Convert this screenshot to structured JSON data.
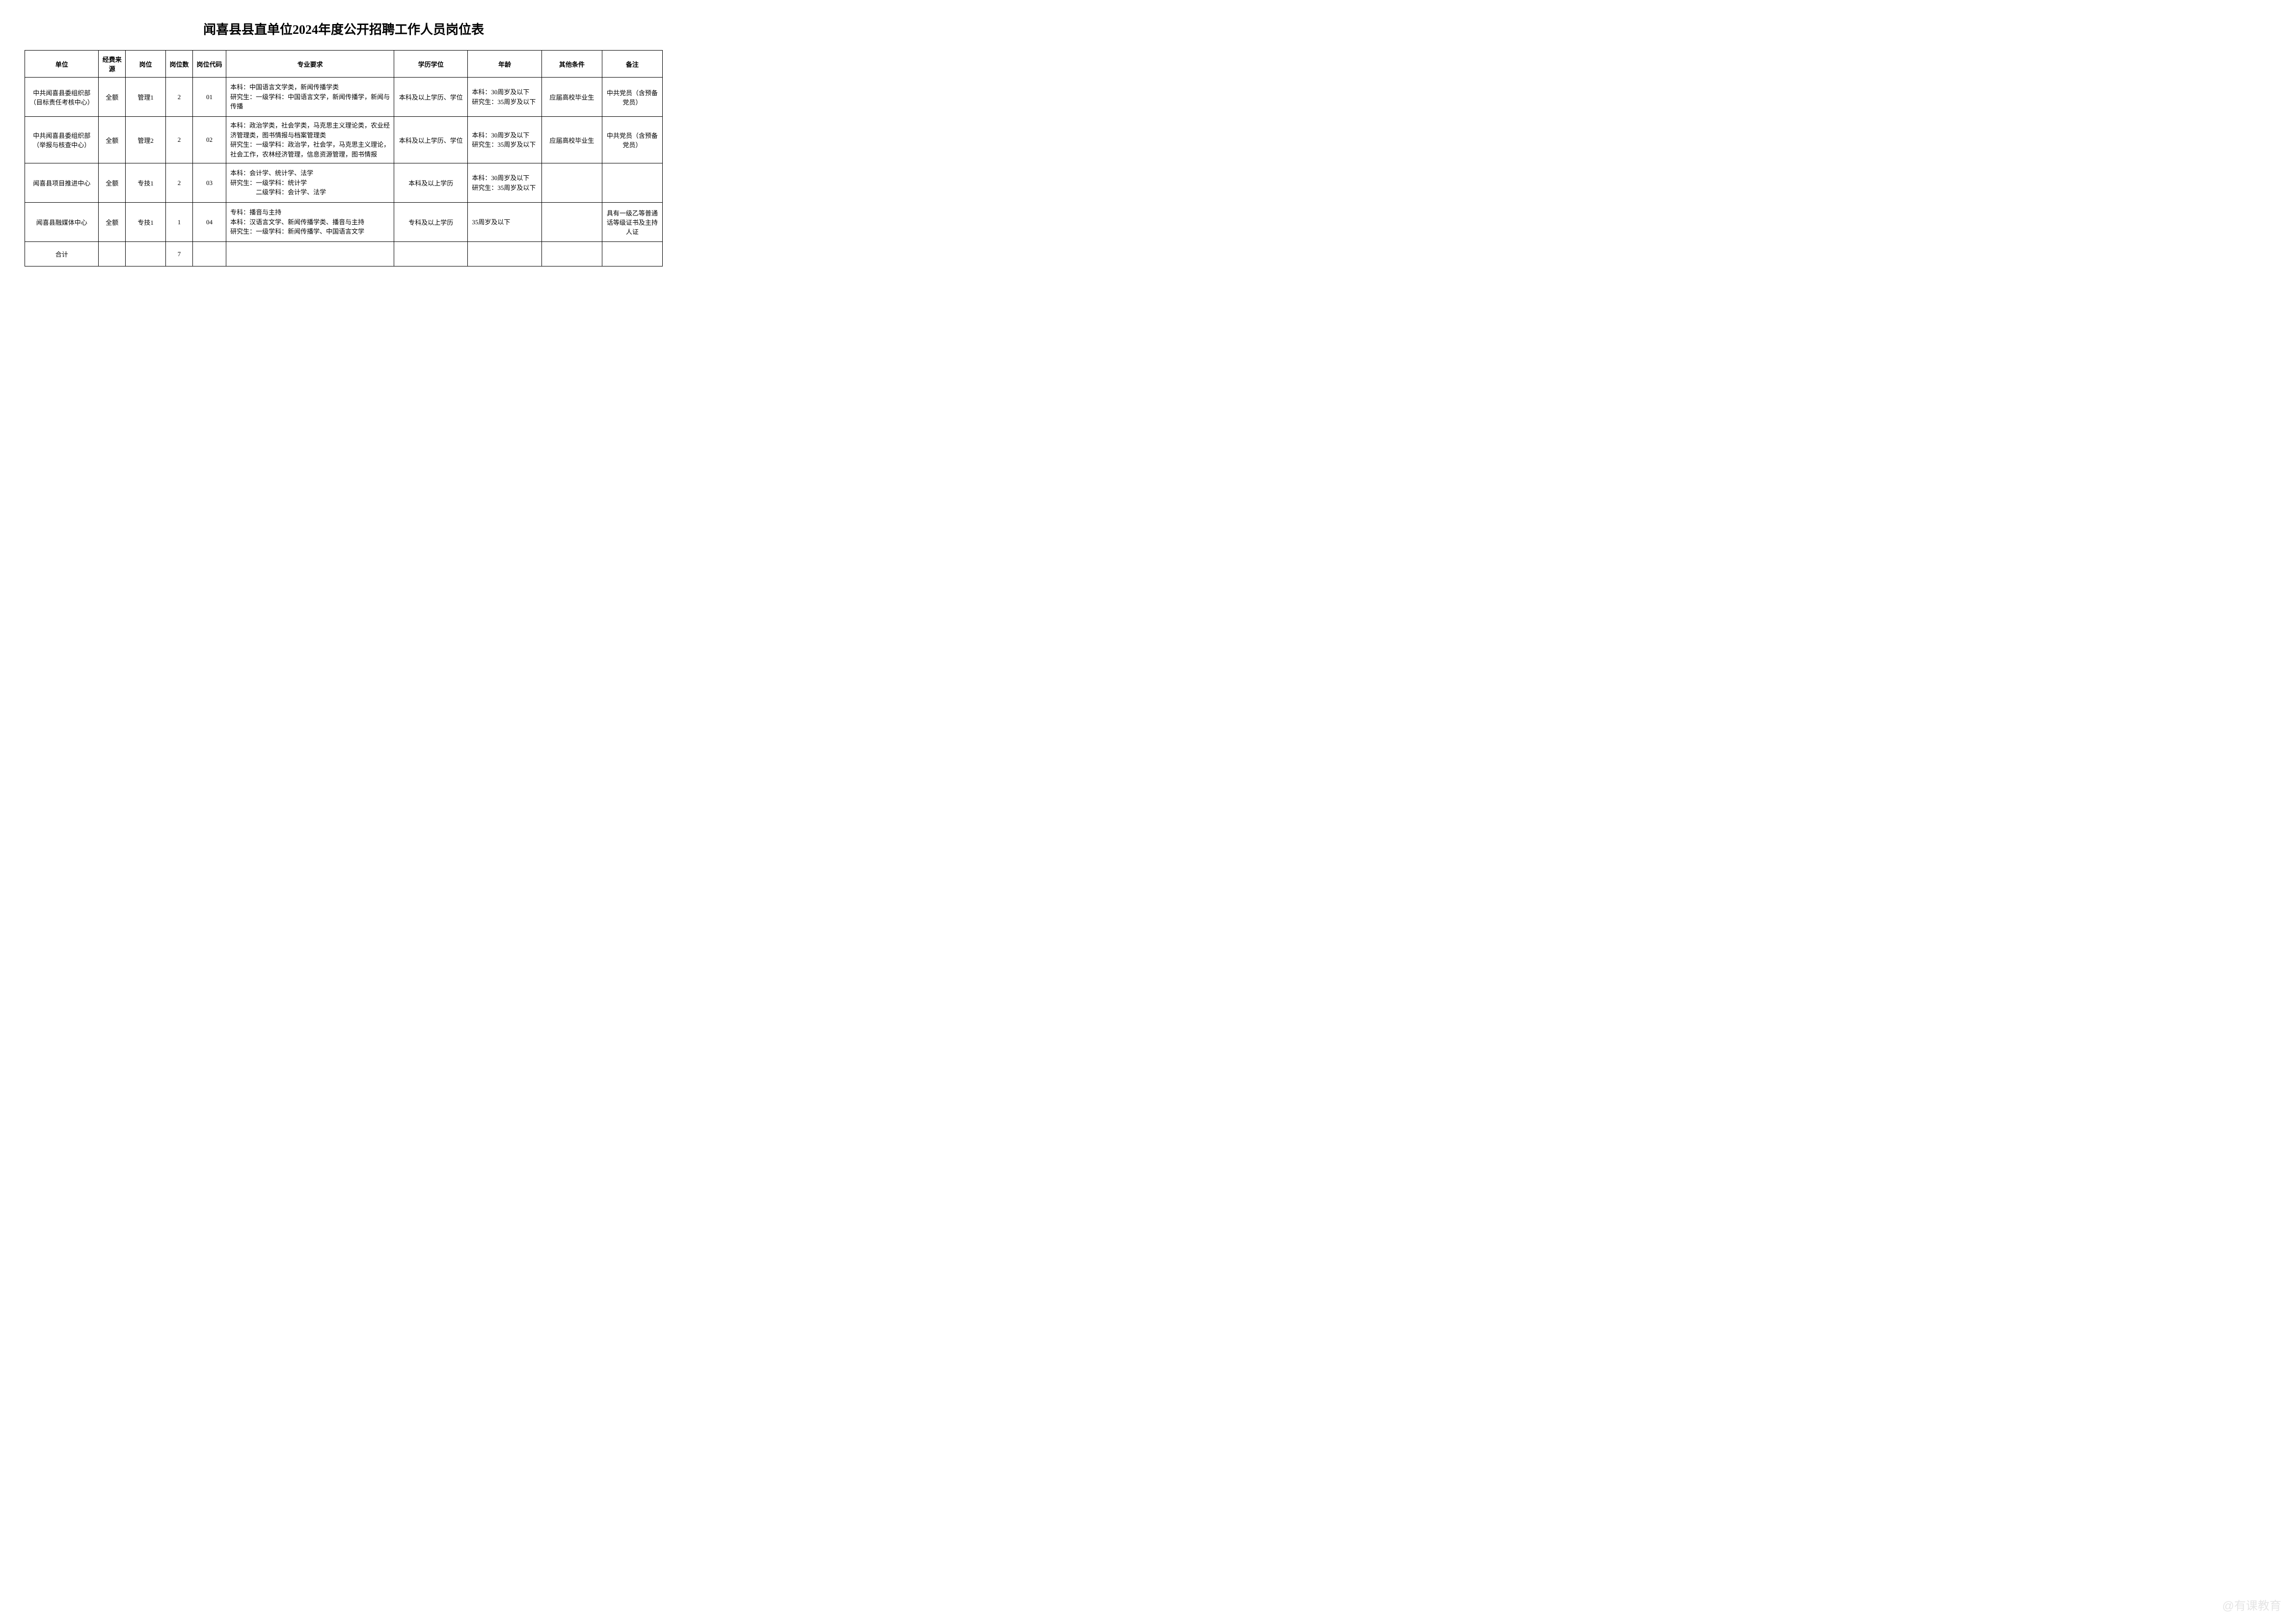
{
  "title": "闻喜县县直单位2024年度公开招聘工作人员岗位表",
  "headers": {
    "unit": "单位",
    "fund": "经费来源",
    "position": "岗位",
    "count": "岗位数",
    "code": "岗位代码",
    "major": "专业要求",
    "edu": "学历学位",
    "age": "年龄",
    "other": "其他条件",
    "note": "备注"
  },
  "rows": [
    {
      "unit": "中共闻喜县委组织部（目标责任考核中心）",
      "fund": "全额",
      "position": "管理1",
      "count": "2",
      "code": "01",
      "major": "本科：中国语言文学类，新闻传播学类\n研究生：一级学科：中国语言文学，新闻传播学，新闻与传播",
      "edu": "本科及以上学历、学位",
      "age": "本科：30周岁及以下\n研究生：35周岁及以下",
      "other": "应届高校毕业生",
      "note": "中共党员（含预备党员）"
    },
    {
      "unit": "中共闻喜县委组织部（举报与核查中心）",
      "fund": "全额",
      "position": "管理2",
      "count": "2",
      "code": "02",
      "major": "本科：政治学类，社会学类，马克思主义理论类，农业经济管理类，图书情报与档案管理类\n研究生：一级学科：政治学，社会学，马克思主义理论，社会工作，农林经济管理，信息资源管理，图书情报",
      "edu": "本科及以上学历、学位",
      "age": "本科：30周岁及以下\n研究生：35周岁及以下",
      "other": "应届高校毕业生",
      "note": "中共党员（含预备党员）"
    },
    {
      "unit": "闻喜县项目推进中心",
      "fund": "全额",
      "position": "专技1",
      "count": "2",
      "code": "03",
      "major": "本科：会计学、统计学、法学\n研究生：一级学科：统计学\n　　　　二级学科：会计学、法学",
      "edu": "本科及以上学历",
      "age": "本科：30周岁及以下\n研究生：35周岁及以下",
      "other": "",
      "note": ""
    },
    {
      "unit": "闻喜县融媒体中心",
      "fund": "全额",
      "position": "专技1",
      "count": "1",
      "code": "04",
      "major": "专科：播音与主持\n本科：汉语言文学、新闻传播学类、播音与主持\n研究生：一级学科：新闻传播学、中国语言文学",
      "edu": "专科及以上学历",
      "age": "35周岁及以下",
      "other": "",
      "note": "具有一级乙等普通话等级证书及主持人证"
    }
  ],
  "total": {
    "label": "合计",
    "count": "7"
  },
  "watermark": "@有课教育",
  "styling": {
    "page_bg": "#ffffff",
    "border_color": "#000000",
    "text_color": "#000000",
    "title_fontsize": 26,
    "cell_fontsize": 13,
    "watermark_color": "#cccccc",
    "column_widths_pct": [
      11,
      4,
      6,
      4,
      5,
      25,
      11,
      11,
      9,
      9
    ]
  }
}
